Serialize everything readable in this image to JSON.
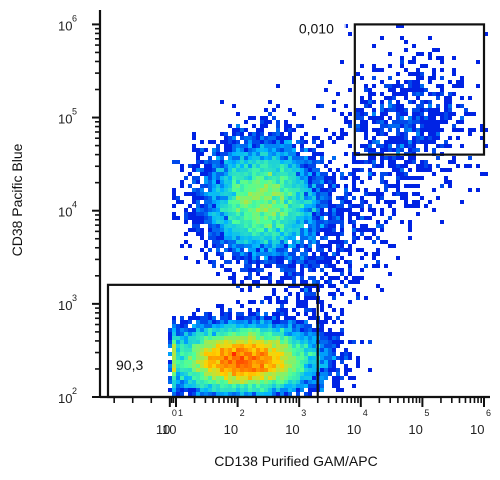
{
  "chart_data": {
    "type": "scatter",
    "subtype": "flow-cytometry-density-dot-plot",
    "title": "",
    "xlabel": "CD138 Purified GAM/APC",
    "ylabel": "CD38 Pacific Blue",
    "x_scale": "biexponential",
    "y_scale": "log",
    "xlim": [
      -100,
      1000000
    ],
    "ylim": [
      100,
      1500000
    ],
    "x_ticks": [
      {
        "base": "10",
        "exp": "0"
      },
      {
        "base": "10",
        "exp": "1"
      },
      {
        "base": "10",
        "exp": "2"
      },
      {
        "base": "10",
        "exp": "3"
      },
      {
        "base": "10",
        "exp": "4"
      },
      {
        "base": "10",
        "exp": "5"
      },
      {
        "base": "10",
        "exp": "6"
      }
    ],
    "y_ticks": [
      {
        "base": "10",
        "exp": "2"
      },
      {
        "base": "10",
        "exp": "3"
      },
      {
        "base": "10",
        "exp": "4"
      },
      {
        "base": "10",
        "exp": "5"
      },
      {
        "base": "10",
        "exp": "6"
      }
    ],
    "color_scale": [
      "#0000dd",
      "#00b4ff",
      "#4cff9a",
      "#ffd200",
      "#ff2a00"
    ],
    "populations": [
      {
        "x_log": 2.1,
        "y_log": 2.4,
        "x_spread": 0.55,
        "y_spread": 0.17,
        "weight": 0.62
      },
      {
        "x_log": 2.4,
        "y_log": 4.12,
        "x_spread": 0.45,
        "y_spread": 0.3,
        "weight": 0.3
      },
      {
        "x_log": 4.8,
        "y_log": 5.0,
        "x_spread": 0.6,
        "y_spread": 0.35,
        "weight": 0.02
      }
    ],
    "gates": [
      {
        "label": "90,3",
        "x_range": [
          -100,
          2000
        ],
        "y_range": [
          100,
          1600
        ]
      },
      {
        "label": "0,010",
        "x_range": [
          8000,
          1000000
        ],
        "y_range": [
          40000,
          1000000
        ]
      }
    ],
    "grid": false,
    "legend": "none"
  }
}
